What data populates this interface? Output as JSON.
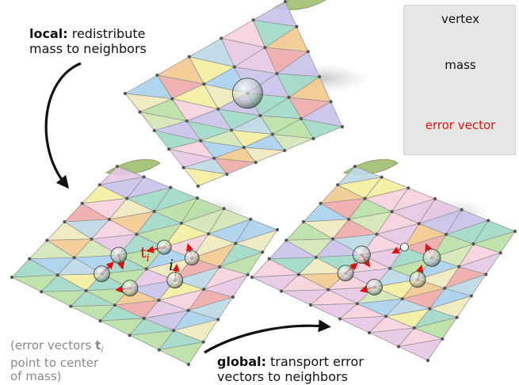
{
  "captions": {
    "local_bold": "local:",
    "local_line1": " redistribute",
    "local_line2": "mass to neighbors",
    "global_bold": "global:",
    "global_line1": " transport error",
    "global_line2": "vectors to neighbors"
  },
  "note": {
    "line1": "(error vectors ",
    "symbol": "t",
    "subscript": "i",
    "line2": "point to center",
    "line3": "of mass)"
  },
  "legend": {
    "vertex": "vertex",
    "mass": "mass",
    "error_vector": "error vector",
    "error_color": "#e81010"
  },
  "labels": {
    "t": "t",
    "t_sub": "i",
    "i": "i"
  },
  "palette": [
    "#9fd9c8",
    "#f2c98e",
    "#e7c6e6",
    "#a9d0ec",
    "#f3ee9e",
    "#b9e0a4",
    "#eeaaa8",
    "#c9c3ea",
    "#efe9bd",
    "#f6d2dc",
    "#d3e7b5",
    "#bcd9e6"
  ]
}
